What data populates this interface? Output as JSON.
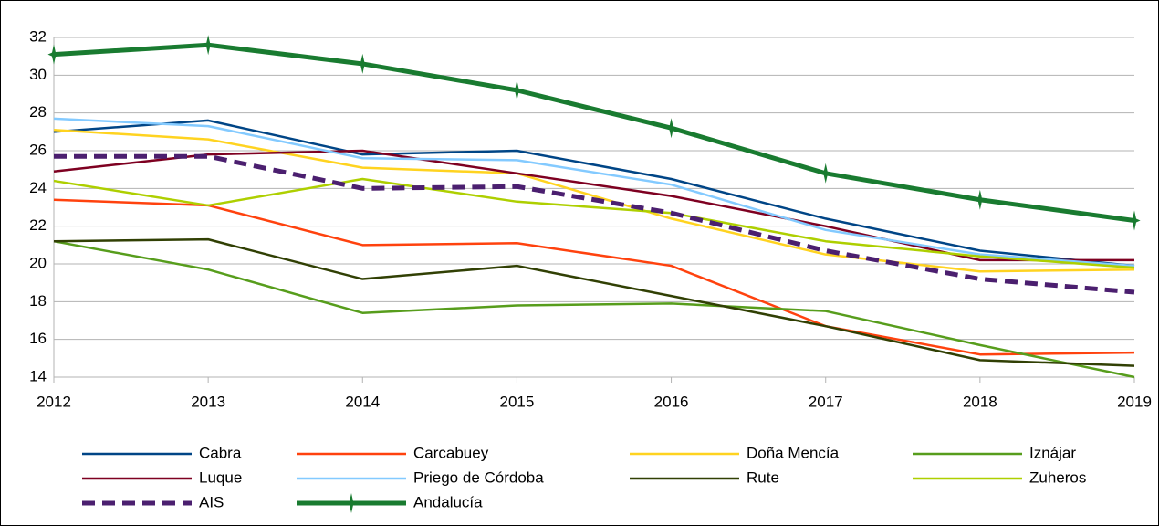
{
  "chart_data": {
    "type": "line",
    "x": [
      2012,
      2013,
      2014,
      2015,
      2016,
      2017,
      2018,
      2019
    ],
    "xlim": [
      2012,
      2019
    ],
    "xticks": [
      2012,
      2013,
      2014,
      2015,
      2016,
      2017,
      2018,
      2019
    ],
    "ylim": [
      14,
      32
    ],
    "yticks": [
      14,
      16,
      18,
      20,
      22,
      24,
      26,
      28,
      30,
      32
    ],
    "grid": true,
    "legend": "bottom",
    "series": [
      {
        "name": "Cabra",
        "color": "#004586",
        "values": [
          27.0,
          27.6,
          25.8,
          26.0,
          24.5,
          22.4,
          20.7,
          19.9
        ]
      },
      {
        "name": "Carcabuey",
        "color": "#ff420e",
        "values": [
          23.4,
          23.1,
          21.0,
          21.1,
          19.9,
          16.7,
          15.2,
          15.3
        ]
      },
      {
        "name": "Doña Mencía",
        "color": "#ffd320",
        "values": [
          27.1,
          26.6,
          25.1,
          24.8,
          22.4,
          20.5,
          19.6,
          19.7
        ]
      },
      {
        "name": "Iznájar",
        "color": "#579d1c",
        "values": [
          21.2,
          19.7,
          17.4,
          17.8,
          17.9,
          17.5,
          15.7,
          14.0
        ]
      },
      {
        "name": "Luque",
        "color": "#7e0021",
        "values": [
          24.9,
          25.8,
          26.0,
          24.8,
          23.6,
          22.0,
          20.2,
          20.2
        ]
      },
      {
        "name": "Priego de Córdoba",
        "color": "#83caff",
        "values": [
          27.7,
          27.3,
          25.6,
          25.5,
          24.2,
          21.8,
          20.5,
          19.9
        ]
      },
      {
        "name": "Rute",
        "color": "#314004",
        "values": [
          21.2,
          21.3,
          19.2,
          19.9,
          18.3,
          16.7,
          14.9,
          14.6
        ]
      },
      {
        "name": "Zuheros",
        "color": "#aecf00",
        "values": [
          24.4,
          23.1,
          24.5,
          23.3,
          22.7,
          21.2,
          20.4,
          19.8
        ]
      },
      {
        "name": "AIS",
        "color": "#4b1f6f",
        "dash": true,
        "values": [
          25.7,
          25.7,
          24.0,
          24.1,
          22.7,
          20.7,
          19.2,
          18.5
        ]
      },
      {
        "name": "Andalucía",
        "color": "#197b30",
        "markers": true,
        "values": [
          31.1,
          31.6,
          30.6,
          29.2,
          27.2,
          24.8,
          23.4,
          22.3
        ]
      }
    ]
  }
}
